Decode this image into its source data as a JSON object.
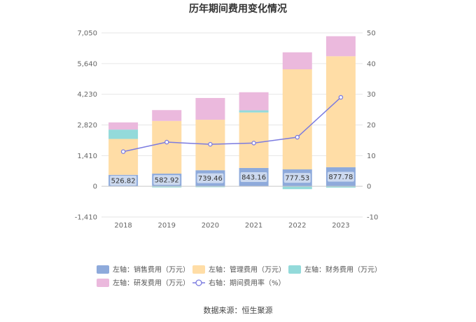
{
  "chart_data": {
    "type": "bar",
    "title": "历年期间费用变化情况",
    "source": "数据来源：恒生聚源",
    "categories": [
      "2018",
      "2019",
      "2020",
      "2021",
      "2022",
      "2023"
    ],
    "y_left": {
      "ticks": [
        7050,
        5640,
        4230,
        2820,
        1410,
        0,
        -1410
      ],
      "tick_labels": [
        "7,050",
        "5,640",
        "4,230",
        "2,820",
        "1,410",
        "0",
        "-1,410"
      ],
      "min": -1410,
      "max": 7050
    },
    "y_right": {
      "ticks": [
        50,
        40,
        30,
        20,
        10,
        0,
        -10
      ],
      "tick_labels": [
        "50",
        "40",
        "30",
        "20",
        "10",
        "0",
        "-10"
      ],
      "min": -10,
      "max": 50
    },
    "grid": true,
    "legend_position": "bottom",
    "series": [
      {
        "name": "左轴：销售费用（万元）",
        "type": "bar",
        "stack": "a",
        "axis": "left",
        "color": "#8eaadb",
        "values": [
          526.82,
          582.92,
          739.46,
          843.16,
          777.53,
          877.78
        ],
        "labels": [
          "526.82",
          "582.92",
          "739.46",
          "843.16",
          "777.53",
          "877.78"
        ]
      },
      {
        "name": "左轴：管理费用（万元）",
        "type": "bar",
        "stack": "a",
        "axis": "left",
        "color": "#ffdda6",
        "values": [
          1650,
          2420,
          2320,
          2550,
          4600,
          5100
        ]
      },
      {
        "name": "左轴：财务费用（万元）",
        "type": "bar",
        "stack": "a",
        "axis": "left",
        "color": "#93dada",
        "values": [
          430,
          -50,
          -40,
          100,
          -130,
          -60
        ]
      },
      {
        "name": "左轴：研发费用（万元）",
        "type": "bar",
        "stack": "a",
        "axis": "left",
        "color": "#ebb9dd",
        "values": [
          330,
          500,
          1000,
          830,
          780,
          920
        ]
      },
      {
        "name": "右轴：期间费用率（%）",
        "type": "line",
        "axis": "right",
        "color": "#7b7be0",
        "values": [
          11.3,
          14.4,
          13.7,
          14.1,
          16.0,
          29.0
        ]
      }
    ]
  }
}
